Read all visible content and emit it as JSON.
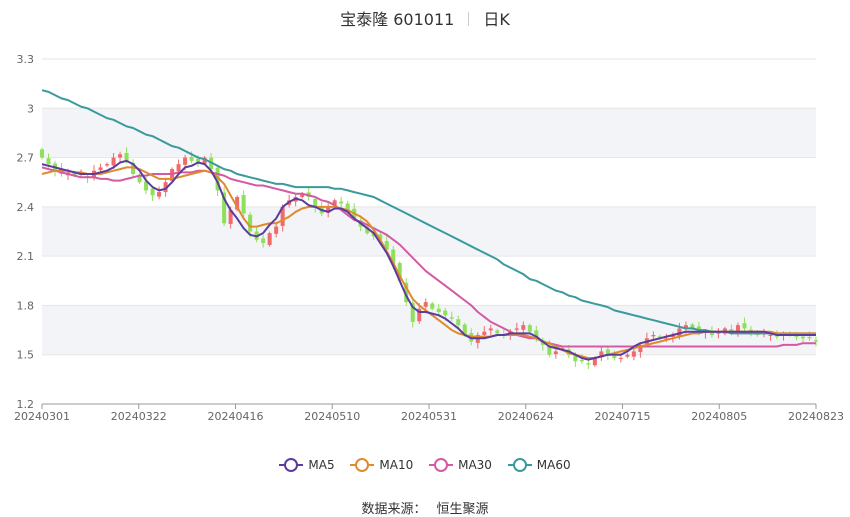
{
  "title": {
    "stock": "宝泰隆 601011",
    "period": "日K"
  },
  "source": {
    "label": "数据来源：",
    "value": "恒生聚源"
  },
  "legend": [
    {
      "name": "MA5",
      "color": "#5b3c9e"
    },
    {
      "name": "MA10",
      "color": "#e08a2e"
    },
    {
      "name": "MA30",
      "color": "#d45aa3"
    },
    {
      "name": "MA60",
      "color": "#3a9a9c"
    }
  ],
  "colors": {
    "up": "#f06a6a",
    "down": "#8ee05a",
    "grid": "#e6e6e6",
    "band": "#f3f4f8",
    "axis_text": "#666666"
  },
  "chart_data": {
    "type": "candlestick",
    "x_ticks": [
      "20240301",
      "20240322",
      "20240416",
      "20240510",
      "20240531",
      "20240624",
      "20240715",
      "20240805",
      "20240823"
    ],
    "y_ticks": [
      "1.2",
      "1.5",
      "1.8",
      "2.1",
      "2.4",
      "2.7",
      "3",
      "3.3"
    ],
    "ylim": [
      1.2,
      3.3
    ],
    "n_sessions": 120,
    "close": [
      2.7,
      2.66,
      2.62,
      2.6,
      2.61,
      2.59,
      2.6,
      2.58,
      2.62,
      2.64,
      2.66,
      2.7,
      2.72,
      2.68,
      2.6,
      2.55,
      2.5,
      2.47,
      2.49,
      2.55,
      2.63,
      2.66,
      2.7,
      2.68,
      2.67,
      2.7,
      2.63,
      2.5,
      2.3,
      2.38,
      2.46,
      2.36,
      2.25,
      2.2,
      2.18,
      2.24,
      2.28,
      2.4,
      2.44,
      2.46,
      2.48,
      2.46,
      2.4,
      2.36,
      2.4,
      2.44,
      2.42,
      2.38,
      2.33,
      2.28,
      2.24,
      2.22,
      2.2,
      2.14,
      2.05,
      1.95,
      1.82,
      1.7,
      1.78,
      1.82,
      1.78,
      1.76,
      1.74,
      1.72,
      1.68,
      1.62,
      1.58,
      1.62,
      1.64,
      1.66,
      1.63,
      1.62,
      1.64,
      1.66,
      1.68,
      1.64,
      1.6,
      1.56,
      1.5,
      1.52,
      1.54,
      1.5,
      1.46,
      1.46,
      1.44,
      1.48,
      1.52,
      1.5,
      1.48,
      1.48,
      1.5,
      1.52,
      1.56,
      1.6,
      1.62,
      1.6,
      1.6,
      1.62,
      1.66,
      1.68,
      1.66,
      1.64,
      1.64,
      1.62,
      1.64,
      1.66,
      1.64,
      1.68,
      1.66,
      1.64,
      1.62,
      1.63,
      1.62,
      1.61,
      1.62,
      1.62,
      1.61,
      1.6,
      1.6,
      1.58
    ],
    "ma5": [
      2.66,
      2.65,
      2.64,
      2.63,
      2.62,
      2.61,
      2.6,
      2.6,
      2.6,
      2.61,
      2.62,
      2.64,
      2.67,
      2.68,
      2.66,
      2.62,
      2.56,
      2.52,
      2.5,
      2.51,
      2.55,
      2.6,
      2.64,
      2.65,
      2.67,
      2.66,
      2.62,
      2.55,
      2.45,
      2.38,
      2.33,
      2.27,
      2.23,
      2.22,
      2.24,
      2.29,
      2.33,
      2.4,
      2.43,
      2.45,
      2.44,
      2.41,
      2.4,
      2.38,
      2.37,
      2.39,
      2.39,
      2.37,
      2.33,
      2.3,
      2.27,
      2.24,
      2.18,
      2.12,
      2.04,
      1.95,
      1.86,
      1.79,
      1.76,
      1.76,
      1.75,
      1.74,
      1.72,
      1.69,
      1.66,
      1.62,
      1.6,
      1.6,
      1.6,
      1.61,
      1.62,
      1.62,
      1.63,
      1.63,
      1.63,
      1.63,
      1.61,
      1.58,
      1.55,
      1.54,
      1.53,
      1.52,
      1.5,
      1.48,
      1.47,
      1.48,
      1.49,
      1.5,
      1.5,
      1.5,
      1.52,
      1.55,
      1.57,
      1.58,
      1.59,
      1.6,
      1.61,
      1.62,
      1.63,
      1.64,
      1.64,
      1.64,
      1.64,
      1.64,
      1.64,
      1.64,
      1.64,
      1.64,
      1.64,
      1.64,
      1.64,
      1.64,
      1.63,
      1.62,
      1.62,
      1.62,
      1.62,
      1.62,
      1.62,
      1.62
    ],
    "ma10": [
      2.6,
      2.61,
      2.62,
      2.62,
      2.62,
      2.61,
      2.61,
      2.6,
      2.6,
      2.6,
      2.61,
      2.62,
      2.63,
      2.64,
      2.64,
      2.63,
      2.61,
      2.59,
      2.57,
      2.57,
      2.57,
      2.58,
      2.59,
      2.6,
      2.61,
      2.62,
      2.61,
      2.58,
      2.54,
      2.47,
      2.4,
      2.33,
      2.28,
      2.28,
      2.29,
      2.3,
      2.3,
      2.32,
      2.34,
      2.37,
      2.39,
      2.4,
      2.4,
      2.4,
      2.4,
      2.4,
      2.39,
      2.38,
      2.36,
      2.34,
      2.31,
      2.26,
      2.2,
      2.13,
      2.06,
      1.98,
      1.91,
      1.84,
      1.8,
      1.77,
      1.74,
      1.71,
      1.68,
      1.65,
      1.63,
      1.62,
      1.61,
      1.61,
      1.61,
      1.61,
      1.62,
      1.62,
      1.62,
      1.62,
      1.62,
      1.61,
      1.6,
      1.58,
      1.57,
      1.55,
      1.53,
      1.51,
      1.5,
      1.49,
      1.48,
      1.48,
      1.49,
      1.5,
      1.51,
      1.52,
      1.53,
      1.54,
      1.55,
      1.56,
      1.57,
      1.58,
      1.59,
      1.6,
      1.61,
      1.62,
      1.63,
      1.63,
      1.64,
      1.64,
      1.64,
      1.64,
      1.64,
      1.64,
      1.64,
      1.64,
      1.64,
      1.64,
      1.64,
      1.63,
      1.63,
      1.63,
      1.63,
      1.63,
      1.63,
      1.63
    ],
    "ma30": [
      2.64,
      2.63,
      2.62,
      2.61,
      2.6,
      2.59,
      2.58,
      2.58,
      2.58,
      2.57,
      2.57,
      2.56,
      2.56,
      2.57,
      2.58,
      2.59,
      2.59,
      2.6,
      2.6,
      2.6,
      2.6,
      2.61,
      2.61,
      2.61,
      2.62,
      2.62,
      2.61,
      2.6,
      2.59,
      2.57,
      2.56,
      2.55,
      2.54,
      2.53,
      2.53,
      2.52,
      2.51,
      2.5,
      2.49,
      2.48,
      2.48,
      2.47,
      2.46,
      2.44,
      2.43,
      2.41,
      2.38,
      2.35,
      2.32,
      2.31,
      2.29,
      2.27,
      2.25,
      2.23,
      2.2,
      2.17,
      2.13,
      2.09,
      2.05,
      2.01,
      1.98,
      1.95,
      1.92,
      1.89,
      1.86,
      1.83,
      1.8,
      1.76,
      1.73,
      1.7,
      1.68,
      1.66,
      1.64,
      1.62,
      1.61,
      1.6,
      1.6,
      1.58,
      1.57,
      1.56,
      1.55,
      1.55,
      1.55,
      1.55,
      1.55,
      1.55,
      1.55,
      1.55,
      1.55,
      1.55,
      1.55,
      1.55,
      1.55,
      1.55,
      1.55,
      1.55,
      1.55,
      1.55,
      1.55,
      1.55,
      1.55,
      1.55,
      1.55,
      1.55,
      1.55,
      1.55,
      1.55,
      1.55,
      1.55,
      1.55,
      1.55,
      1.55,
      1.55,
      1.55,
      1.56,
      1.56,
      1.56,
      1.57,
      1.57,
      1.57
    ],
    "ma60": [
      3.11,
      3.1,
      3.08,
      3.06,
      3.05,
      3.03,
      3.01,
      3.0,
      2.98,
      2.96,
      2.94,
      2.93,
      2.91,
      2.89,
      2.88,
      2.86,
      2.84,
      2.83,
      2.81,
      2.79,
      2.77,
      2.76,
      2.74,
      2.72,
      2.7,
      2.69,
      2.67,
      2.65,
      2.63,
      2.62,
      2.6,
      2.59,
      2.58,
      2.57,
      2.56,
      2.55,
      2.54,
      2.54,
      2.53,
      2.52,
      2.52,
      2.52,
      2.52,
      2.52,
      2.52,
      2.51,
      2.51,
      2.5,
      2.49,
      2.48,
      2.47,
      2.46,
      2.44,
      2.42,
      2.4,
      2.38,
      2.36,
      2.34,
      2.32,
      2.3,
      2.28,
      2.26,
      2.24,
      2.22,
      2.2,
      2.18,
      2.16,
      2.14,
      2.12,
      2.1,
      2.08,
      2.05,
      2.03,
      2.01,
      1.99,
      1.96,
      1.95,
      1.93,
      1.91,
      1.89,
      1.88,
      1.86,
      1.85,
      1.83,
      1.82,
      1.81,
      1.8,
      1.79,
      1.77,
      1.76,
      1.75,
      1.74,
      1.73,
      1.72,
      1.71,
      1.7,
      1.69,
      1.68,
      1.67,
      1.66,
      1.66,
      1.65,
      1.65,
      1.64,
      1.64,
      1.64,
      1.63,
      1.63,
      1.63,
      1.63,
      1.63,
      1.63,
      1.63,
      1.63,
      1.63,
      1.63,
      1.63,
      1.63,
      1.63,
      1.63
    ]
  }
}
